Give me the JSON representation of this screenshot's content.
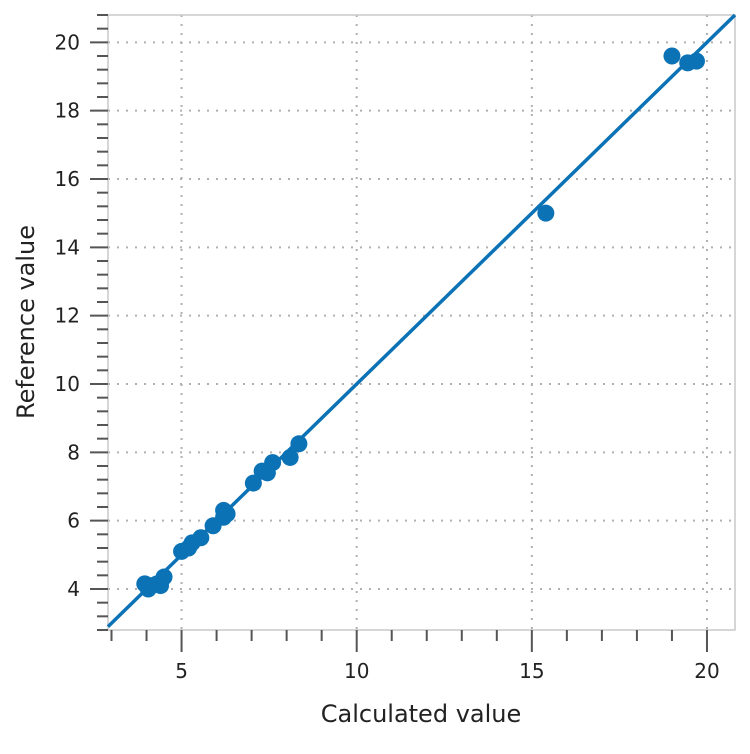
{
  "chart_data": {
    "type": "scatter",
    "title": "",
    "xlabel": "Calculated value",
    "ylabel": "Reference value",
    "xlim": [
      2.9,
      20.8
    ],
    "ylim": [
      2.8,
      20.8
    ],
    "xticks": [
      5,
      10,
      15,
      20
    ],
    "yticks": [
      4,
      6,
      8,
      10,
      12,
      14,
      16,
      18,
      20
    ],
    "grid": true,
    "color": "#0b72b5",
    "points": [
      {
        "x": 3.95,
        "y": 4.15
      },
      {
        "x": 4.05,
        "y": 4.0
      },
      {
        "x": 4.15,
        "y": 4.1
      },
      {
        "x": 4.3,
        "y": 4.15
      },
      {
        "x": 4.4,
        "y": 4.1
      },
      {
        "x": 4.5,
        "y": 4.35
      },
      {
        "x": 5.0,
        "y": 5.1
      },
      {
        "x": 5.2,
        "y": 5.2
      },
      {
        "x": 5.3,
        "y": 5.35
      },
      {
        "x": 5.55,
        "y": 5.5
      },
      {
        "x": 5.9,
        "y": 5.85
      },
      {
        "x": 6.2,
        "y": 6.1
      },
      {
        "x": 6.2,
        "y": 6.3
      },
      {
        "x": 6.3,
        "y": 6.2
      },
      {
        "x": 7.05,
        "y": 7.1
      },
      {
        "x": 7.3,
        "y": 7.45
      },
      {
        "x": 7.45,
        "y": 7.4
      },
      {
        "x": 7.6,
        "y": 7.7
      },
      {
        "x": 8.1,
        "y": 7.85
      },
      {
        "x": 8.35,
        "y": 8.25
      },
      {
        "x": 15.4,
        "y": 15.0
      },
      {
        "x": 19.0,
        "y": 19.6
      },
      {
        "x": 19.45,
        "y": 19.4
      },
      {
        "x": 19.7,
        "y": 19.45
      }
    ],
    "fit_line": {
      "slope": 1,
      "intercept": 0
    }
  }
}
